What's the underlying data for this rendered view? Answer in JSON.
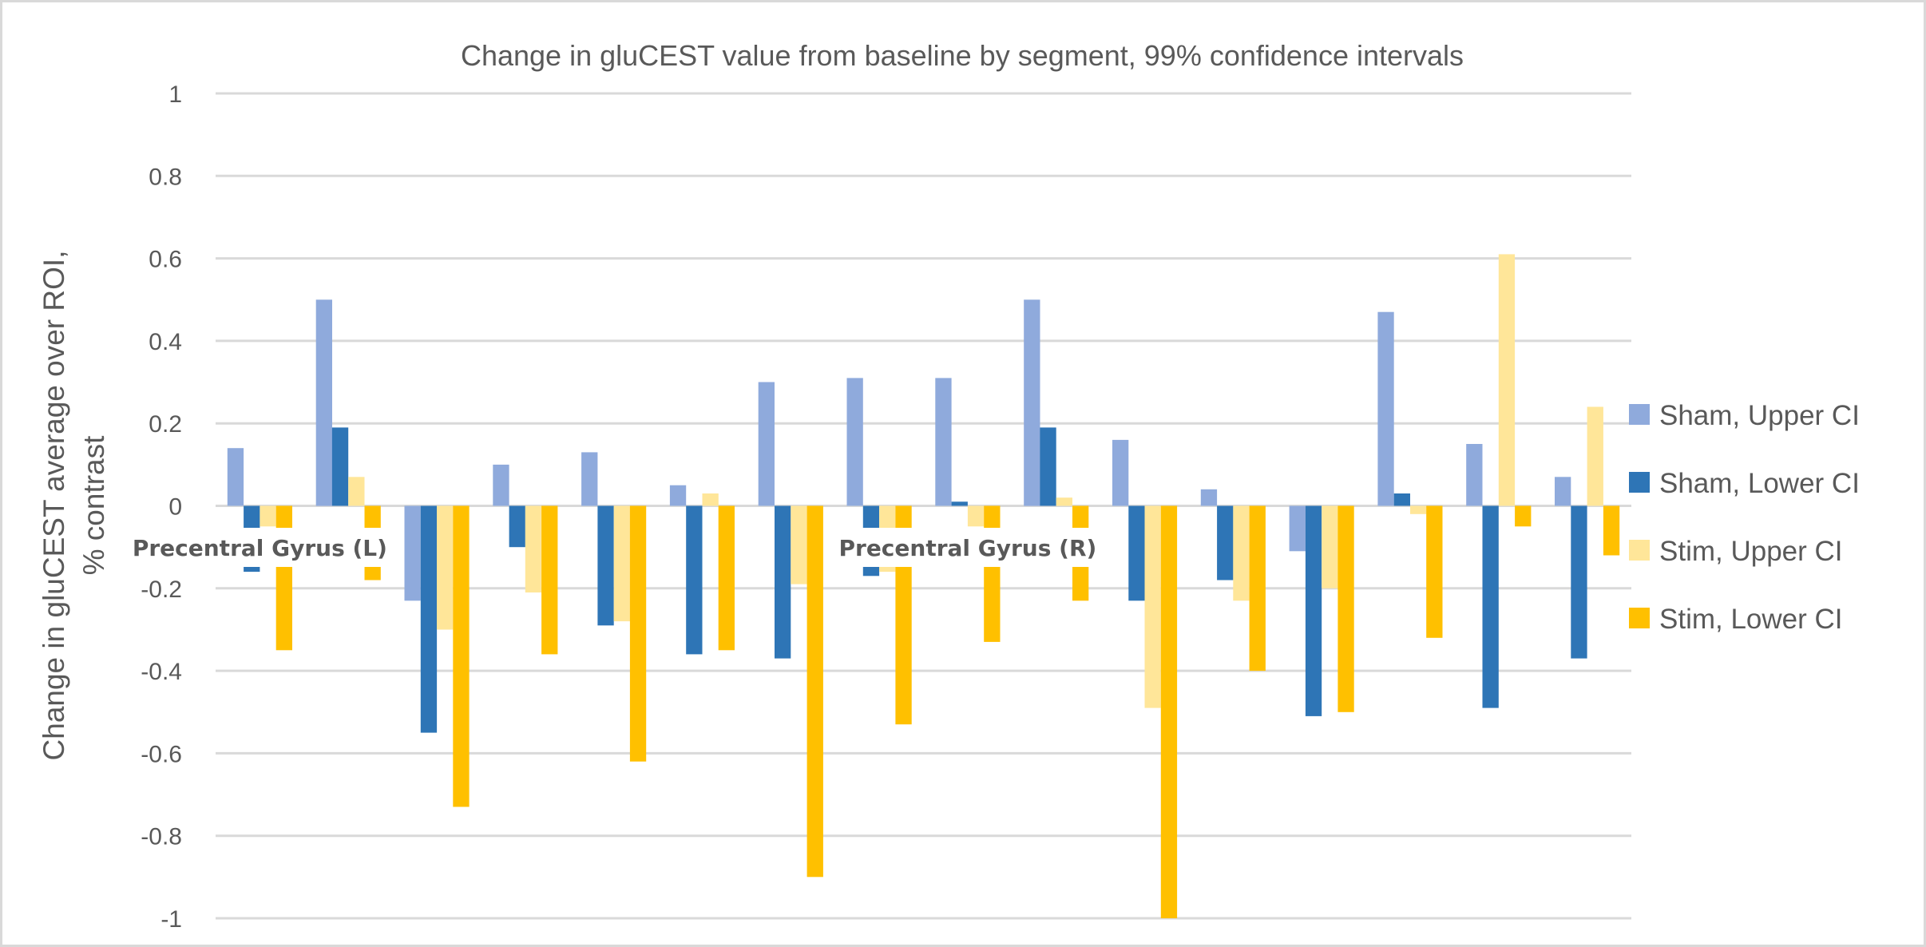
{
  "chart_data": {
    "type": "bar",
    "title": "Change in gluCEST value from baseline by segment, 99% confidence intervals",
    "xlabel": "",
    "ylabel": [
      "Change in gluCEST average over ROI,",
      "% contrast"
    ],
    "ylim": [
      -1,
      1
    ],
    "yticks": [
      1,
      0.8,
      0.6,
      0.4,
      0.2,
      0,
      -0.2,
      -0.4,
      -0.6,
      -0.8,
      -1
    ],
    "ytick_labels": [
      "1",
      "0.8",
      "0.6",
      "0.4",
      "0.2",
      "0",
      "-0.2",
      "-0.4",
      "-0.6",
      "-0.8",
      "-1"
    ],
    "grid": true,
    "legend_position": "right",
    "categories": [
      "Precentral Gyrus (L)",
      "",
      "",
      "",
      "",
      "",
      "",
      "",
      "Precentral Gyrus (R)",
      "",
      "",
      "",
      "",
      "",
      "",
      ""
    ],
    "series": [
      {
        "name": "Sham, Upper CI",
        "color": "#8faadc",
        "values": [
          0.14,
          0.5,
          -0.23,
          0.1,
          0.13,
          0.05,
          0.3,
          0.31,
          0.31,
          0.5,
          0.16,
          0.04,
          -0.11,
          0.47,
          0.15,
          0.07
        ]
      },
      {
        "name": "Sham, Lower CI",
        "color": "#2e75b6",
        "values": [
          -0.16,
          0.19,
          -0.55,
          -0.1,
          -0.29,
          -0.36,
          -0.37,
          -0.17,
          0.01,
          0.19,
          -0.23,
          -0.18,
          -0.51,
          0.03,
          -0.49,
          -0.37
        ]
      },
      {
        "name": "Stim, Upper CI",
        "color": "#ffe699",
        "values": [
          -0.05,
          0.07,
          -0.3,
          -0.21,
          -0.28,
          0.03,
          -0.19,
          -0.16,
          -0.05,
          0.02,
          -0.49,
          -0.23,
          -0.2,
          -0.02,
          0.61,
          0.24
        ]
      },
      {
        "name": "Stim, Lower CI",
        "color": "#ffc000",
        "values": [
          -0.35,
          -0.18,
          -0.73,
          -0.36,
          -0.62,
          -0.35,
          -0.9,
          -0.53,
          -0.33,
          -0.23,
          -1.0,
          -0.4,
          -0.5,
          -0.32,
          -0.05,
          -0.12
        ]
      }
    ]
  }
}
